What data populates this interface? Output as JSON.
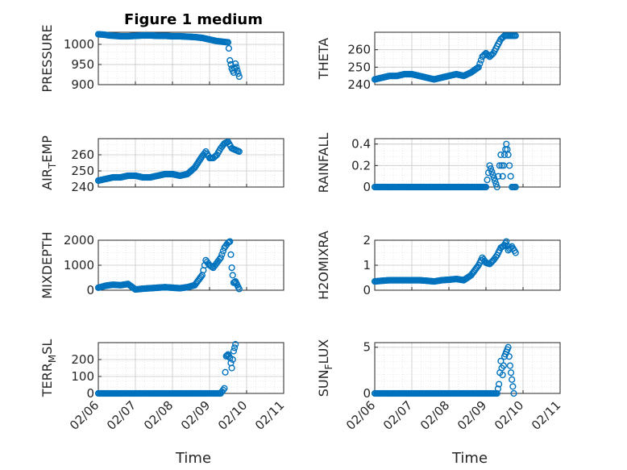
{
  "figure_title": "Figure 1 medium",
  "x_tick_labels": [
    "02/06",
    "02/07",
    "02/08",
    "02/09",
    "02/10",
    "02/11"
  ],
  "x_label": "Time",
  "colors": {
    "marker": "#0072BD",
    "axis": "#262626",
    "grid": "#d9d9d9"
  },
  "chart_data": [
    {
      "type": "scatter",
      "ylabel": "PRESSURE",
      "ylim": [
        900,
        1030
      ],
      "yticks": [
        900,
        950,
        1000
      ],
      "xlim": [
        0,
        5
      ],
      "series": [
        {
          "name": "PRESSURE",
          "x": [
            0.0,
            0.15,
            0.3,
            0.45,
            0.6,
            0.8,
            1.0,
            1.2,
            1.4,
            1.6,
            1.8,
            2.0,
            2.2,
            2.4,
            2.6,
            2.8,
            3.0,
            3.1,
            3.2,
            3.3,
            3.4,
            3.5,
            3.52,
            3.55,
            3.6,
            3.65,
            3.7,
            3.75,
            3.8
          ],
          "y": [
            1025,
            1024,
            1022,
            1021,
            1020,
            1020,
            1021,
            1022,
            1022,
            1021,
            1021,
            1020,
            1020,
            1019,
            1018,
            1016,
            1012,
            1010,
            1008,
            1007,
            1006,
            1005,
            990,
            960,
            940,
            930,
            952,
            935,
            920
          ]
        }
      ]
    },
    {
      "type": "scatter",
      "ylabel": "THETA",
      "ylim": [
        240,
        270
      ],
      "yticks": [
        240,
        250,
        260
      ],
      "xlim": [
        0,
        5
      ],
      "series": [
        {
          "name": "THETA",
          "x": [
            0.0,
            0.2,
            0.4,
            0.6,
            0.8,
            1.0,
            1.2,
            1.4,
            1.6,
            1.8,
            2.0,
            2.2,
            2.4,
            2.6,
            2.8,
            2.9,
            3.0,
            3.1,
            3.2,
            3.3,
            3.4,
            3.5,
            3.6,
            3.7,
            3.8
          ],
          "y": [
            243,
            244,
            245,
            245,
            246,
            246,
            245,
            244,
            243,
            244,
            245,
            246,
            245,
            247,
            250,
            256,
            258,
            256,
            258,
            262,
            266,
            268,
            268,
            268,
            268
          ]
        }
      ]
    },
    {
      "type": "scatter",
      "ylabel": "AIR_TEMP",
      "ylim": [
        240,
        270
      ],
      "yticks": [
        240,
        250,
        260
      ],
      "xlim": [
        0,
        5
      ],
      "series": [
        {
          "name": "AIR_TEMP",
          "x": [
            0.0,
            0.2,
            0.4,
            0.6,
            0.8,
            1.0,
            1.2,
            1.4,
            1.6,
            1.8,
            2.0,
            2.2,
            2.4,
            2.6,
            2.8,
            2.9,
            3.0,
            3.1,
            3.2,
            3.3,
            3.4,
            3.5,
            3.6,
            3.7,
            3.8
          ],
          "y": [
            244,
            245,
            246,
            246,
            247,
            247,
            246,
            246,
            247,
            248,
            248,
            247,
            248,
            252,
            259,
            262,
            258,
            258,
            260,
            264,
            267,
            268,
            264,
            263,
            262
          ]
        }
      ]
    },
    {
      "type": "scatter",
      "ylabel": "RAINFALL",
      "ylim": [
        0,
        0.45
      ],
      "yticks": [
        0,
        0.2,
        0.4
      ],
      "xlim": [
        0,
        5
      ],
      "series": [
        {
          "name": "RAINFALL",
          "x": [
            0.0,
            0.5,
            1.0,
            1.5,
            2.0,
            2.5,
            3.0,
            3.1,
            3.3,
            3.4,
            3.45,
            3.5,
            3.55,
            3.6,
            3.7,
            3.8
          ],
          "y": [
            0,
            0,
            0,
            0,
            0,
            0,
            0,
            0.2,
            0,
            0.3,
            0.1,
            0.3,
            0.4,
            0.3,
            0,
            0
          ]
        }
      ]
    },
    {
      "type": "scatter",
      "ylabel": "MIXDEPTH",
      "ylim": [
        0,
        2000
      ],
      "yticks": [
        0,
        1000,
        2000
      ],
      "xlim": [
        0,
        5
      ],
      "series": [
        {
          "name": "MIXDEPTH",
          "x": [
            0.0,
            0.2,
            0.4,
            0.6,
            0.8,
            1.0,
            1.2,
            1.4,
            1.6,
            1.8,
            2.0,
            2.2,
            2.4,
            2.6,
            2.8,
            2.9,
            3.0,
            3.1,
            3.2,
            3.3,
            3.4,
            3.5,
            3.55,
            3.6,
            3.65,
            3.7,
            3.75,
            3.8
          ],
          "y": [
            100,
            180,
            220,
            200,
            250,
            30,
            60,
            80,
            100,
            120,
            100,
            80,
            120,
            200,
            600,
            1200,
            1000,
            900,
            1100,
            1300,
            1700,
            1900,
            1950,
            900,
            300,
            350,
            200,
            50
          ]
        }
      ]
    },
    {
      "type": "scatter",
      "ylabel": "H2OMIXRA",
      "ylim": [
        0,
        2
      ],
      "yticks": [
        0,
        1,
        2
      ],
      "xlim": [
        0,
        5
      ],
      "series": [
        {
          "name": "H2OMIXRA",
          "x": [
            0.0,
            0.2,
            0.4,
            0.6,
            0.8,
            1.0,
            1.2,
            1.4,
            1.6,
            1.8,
            2.0,
            2.2,
            2.4,
            2.6,
            2.8,
            2.9,
            3.0,
            3.1,
            3.2,
            3.3,
            3.4,
            3.5,
            3.55,
            3.6,
            3.7,
            3.8
          ],
          "y": [
            0.35,
            0.38,
            0.4,
            0.4,
            0.4,
            0.4,
            0.4,
            0.38,
            0.35,
            0.4,
            0.42,
            0.45,
            0.4,
            0.6,
            1.0,
            1.3,
            1.1,
            1.05,
            1.2,
            1.4,
            1.7,
            1.8,
            1.95,
            1.6,
            1.75,
            1.5
          ]
        }
      ]
    },
    {
      "type": "scatter",
      "ylabel": "TERR_MSL",
      "ylim": [
        0,
        300
      ],
      "yticks": [
        0,
        100,
        200
      ],
      "xlim": [
        0,
        5
      ],
      "series": [
        {
          "name": "TERR_MSL",
          "x": [
            0.0,
            0.5,
            1.0,
            1.5,
            2.0,
            2.5,
            3.0,
            3.3,
            3.4,
            3.45,
            3.5,
            3.55,
            3.6,
            3.65,
            3.7
          ],
          "y": [
            0,
            0,
            0,
            0,
            0,
            0,
            0,
            0,
            30,
            220,
            230,
            210,
            150,
            250,
            290
          ]
        }
      ]
    },
    {
      "type": "scatter",
      "ylabel": "SUN_FLUX",
      "ylim": [
        0,
        5.5
      ],
      "yticks": [
        0,
        5
      ],
      "xlim": [
        0,
        5
      ],
      "series": [
        {
          "name": "SUN_FLUX",
          "x": [
            0.0,
            0.5,
            1.0,
            1.5,
            2.0,
            2.5,
            3.0,
            3.3,
            3.35,
            3.4,
            3.45,
            3.5,
            3.55,
            3.6,
            3.65,
            3.7,
            3.75
          ],
          "y": [
            0,
            0,
            0,
            0,
            0,
            0,
            0,
            0,
            1.0,
            3.5,
            2.0,
            4.0,
            4.5,
            5.0,
            3.0,
            1.5,
            0
          ]
        }
      ]
    }
  ]
}
